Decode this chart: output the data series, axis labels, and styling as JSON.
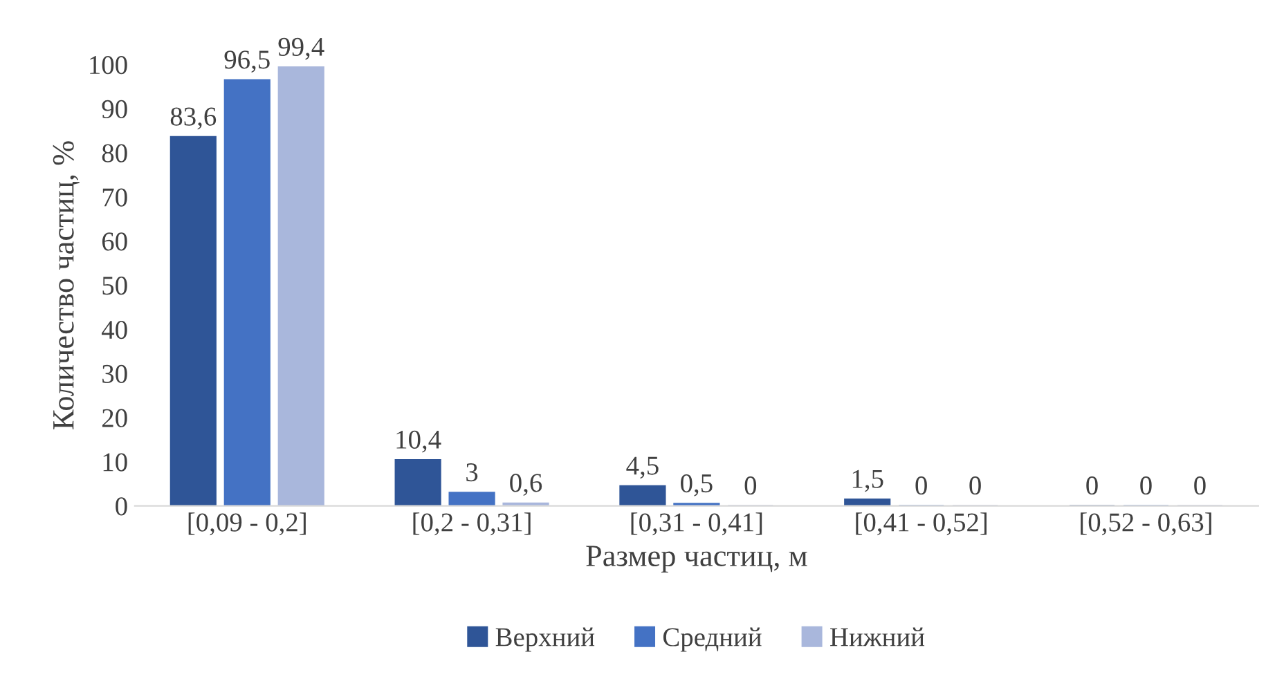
{
  "chart_data": {
    "type": "bar",
    "xlabel": "Размер частиц, м",
    "ylabel": "Количество частиц, %",
    "categories": [
      "[0,09 - 0,2]",
      "[0,2 - 0,31]",
      "[0,31 - 0,41]",
      "[0,41 - 0,52]",
      "[0,52 - 0,63]"
    ],
    "series": [
      {
        "name": "Верхний",
        "color": "#2f5597",
        "values": [
          83.6,
          10.4,
          4.5,
          1.5,
          0
        ],
        "value_labels": [
          "83,6",
          "10,4",
          "4,5",
          "1,5",
          "0"
        ]
      },
      {
        "name": "Средний",
        "color": "#4472c4",
        "values": [
          96.5,
          3,
          0.5,
          0,
          0
        ],
        "value_labels": [
          "96,5",
          "3",
          "0,5",
          "0",
          "0"
        ]
      },
      {
        "name": "Нижний",
        "color": "#a9b7dc",
        "values": [
          99.4,
          0.6,
          0,
          0,
          0
        ],
        "value_labels": [
          "99,4",
          "0,6",
          "0",
          "0",
          "0"
        ]
      }
    ],
    "ylim": [
      0,
      100
    ],
    "yticks": [
      0,
      10,
      20,
      30,
      40,
      50,
      60,
      70,
      80,
      90,
      100
    ],
    "grid": false,
    "legend": "bottom"
  }
}
